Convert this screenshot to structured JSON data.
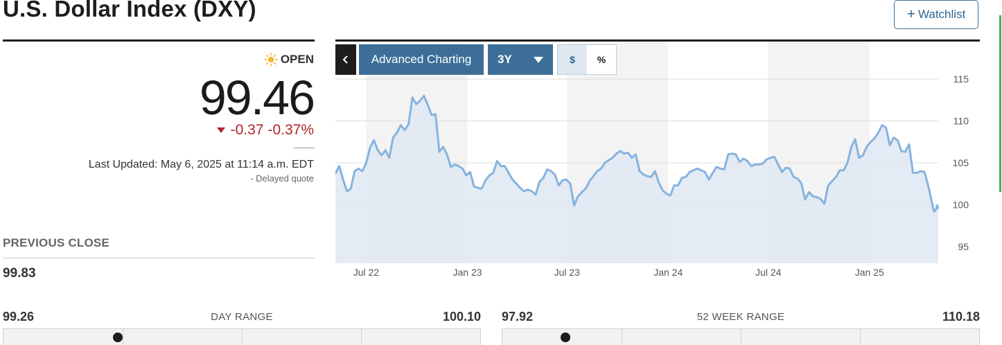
{
  "header": {
    "title": "U.S. Dollar Index (DXY)",
    "watchlist_label": "Watchlist"
  },
  "quote": {
    "status": "OPEN",
    "price": "99.46",
    "change": "-0.37",
    "change_pct": "-0.37%",
    "last_updated": "Last Updated: May 6, 2025 at 11:14 a.m. EDT",
    "delayed": "-  Delayed quote",
    "change_color": "#b0242b"
  },
  "previous_close": {
    "label": "PREVIOUS CLOSE",
    "value": "99.83"
  },
  "day_range": {
    "label": "DAY RANGE",
    "low": "99.26",
    "high": "100.10",
    "position": 0.24
  },
  "week52_range": {
    "label": "52 WEEK RANGE",
    "low": "97.92",
    "high": "110.18",
    "position": 0.134
  },
  "toolbar": {
    "back_icon": "chevron-left-icon",
    "advanced_label": "Advanced Charting",
    "period": "3Y",
    "unit_dollar": "$",
    "unit_percent": "%",
    "accent": "#3c6e97"
  },
  "chart_data": {
    "type": "area",
    "x_ticks": [
      "Jul 22",
      "Jan 23",
      "Jul 23",
      "Jan 24",
      "Jul 24",
      "Jan 25"
    ],
    "y_ticks": [
      95,
      100,
      105,
      110,
      115
    ],
    "ylim": [
      93,
      116
    ],
    "x_range": [
      "2022-05-06",
      "2025-05-06"
    ],
    "line_color": "#86b3df",
    "fill_color": "#dfe8f2",
    "series": [
      {
        "values": [
          [
            "2022-05-06",
            103.7
          ],
          [
            "2022-05-13",
            104.6
          ],
          [
            "2022-05-20",
            103.0
          ],
          [
            "2022-05-27",
            101.6
          ],
          [
            "2022-06-03",
            101.9
          ],
          [
            "2022-06-10",
            104.0
          ],
          [
            "2022-06-17",
            104.3
          ],
          [
            "2022-06-24",
            104.0
          ],
          [
            "2022-07-01",
            105.0
          ],
          [
            "2022-07-08",
            106.8
          ],
          [
            "2022-07-15",
            107.7
          ],
          [
            "2022-07-22",
            106.5
          ],
          [
            "2022-07-29",
            105.9
          ],
          [
            "2022-08-05",
            106.5
          ],
          [
            "2022-08-12",
            105.6
          ],
          [
            "2022-08-19",
            108.0
          ],
          [
            "2022-08-26",
            108.6
          ],
          [
            "2022-09-02",
            109.5
          ],
          [
            "2022-09-09",
            108.9
          ],
          [
            "2022-09-16",
            109.6
          ],
          [
            "2022-09-23",
            112.8
          ],
          [
            "2022-09-30",
            112.0
          ],
          [
            "2022-10-07",
            112.4
          ],
          [
            "2022-10-14",
            113.0
          ],
          [
            "2022-10-21",
            111.9
          ],
          [
            "2022-10-28",
            110.7
          ],
          [
            "2022-11-04",
            110.8
          ],
          [
            "2022-11-11",
            106.3
          ],
          [
            "2022-11-18",
            106.9
          ],
          [
            "2022-11-25",
            106.0
          ],
          [
            "2022-12-02",
            104.5
          ],
          [
            "2022-12-09",
            104.8
          ],
          [
            "2022-12-16",
            104.6
          ],
          [
            "2022-12-23",
            104.3
          ],
          [
            "2022-12-30",
            103.5
          ],
          [
            "2023-01-06",
            103.9
          ],
          [
            "2023-01-13",
            102.2
          ],
          [
            "2023-01-20",
            102.0
          ],
          [
            "2023-01-27",
            101.9
          ],
          [
            "2023-02-03",
            102.9
          ],
          [
            "2023-02-10",
            103.5
          ],
          [
            "2023-02-17",
            103.8
          ],
          [
            "2023-02-24",
            105.2
          ],
          [
            "2023-03-03",
            104.6
          ],
          [
            "2023-03-10",
            104.6
          ],
          [
            "2023-03-17",
            103.8
          ],
          [
            "2023-03-24",
            103.0
          ],
          [
            "2023-03-31",
            102.5
          ],
          [
            "2023-04-07",
            102.0
          ],
          [
            "2023-04-14",
            101.6
          ],
          [
            "2023-04-21",
            101.8
          ],
          [
            "2023-04-28",
            101.6
          ],
          [
            "2023-05-05",
            101.2
          ],
          [
            "2023-05-12",
            102.7
          ],
          [
            "2023-05-19",
            103.2
          ],
          [
            "2023-05-26",
            104.2
          ],
          [
            "2023-06-02",
            104.0
          ],
          [
            "2023-06-09",
            103.6
          ],
          [
            "2023-06-16",
            102.3
          ],
          [
            "2023-06-23",
            102.9
          ],
          [
            "2023-06-30",
            103.0
          ],
          [
            "2023-07-07",
            102.5
          ],
          [
            "2023-07-14",
            99.9
          ],
          [
            "2023-07-21",
            101.0
          ],
          [
            "2023-07-28",
            101.5
          ],
          [
            "2023-08-04",
            101.9
          ],
          [
            "2023-08-11",
            102.8
          ],
          [
            "2023-08-18",
            103.4
          ],
          [
            "2023-08-25",
            104.0
          ],
          [
            "2023-09-01",
            104.3
          ],
          [
            "2023-09-08",
            105.0
          ],
          [
            "2023-09-15",
            105.3
          ],
          [
            "2023-09-22",
            105.6
          ],
          [
            "2023-09-29",
            106.1
          ],
          [
            "2023-10-06",
            106.4
          ],
          [
            "2023-10-13",
            106.1
          ],
          [
            "2023-10-20",
            106.2
          ],
          [
            "2023-10-27",
            105.6
          ],
          [
            "2023-11-03",
            106.0
          ],
          [
            "2023-11-10",
            104.0
          ],
          [
            "2023-11-17",
            103.6
          ],
          [
            "2023-11-24",
            103.4
          ],
          [
            "2023-12-01",
            103.3
          ],
          [
            "2023-12-08",
            104.0
          ],
          [
            "2023-12-15",
            102.6
          ],
          [
            "2023-12-22",
            101.7
          ],
          [
            "2023-12-29",
            101.3
          ],
          [
            "2024-01-05",
            101.1
          ],
          [
            "2024-01-12",
            102.3
          ],
          [
            "2024-01-19",
            102.3
          ],
          [
            "2024-01-26",
            103.2
          ],
          [
            "2024-02-02",
            103.3
          ],
          [
            "2024-02-09",
            103.9
          ],
          [
            "2024-02-16",
            104.1
          ],
          [
            "2024-02-23",
            104.3
          ],
          [
            "2024-03-01",
            104.1
          ],
          [
            "2024-03-08",
            103.9
          ],
          [
            "2024-03-15",
            103.0
          ],
          [
            "2024-03-22",
            103.8
          ],
          [
            "2024-03-29",
            104.5
          ],
          [
            "2024-04-05",
            104.3
          ],
          [
            "2024-04-12",
            104.2
          ],
          [
            "2024-04-19",
            106.0
          ],
          [
            "2024-04-26",
            106.1
          ],
          [
            "2024-05-03",
            106.0
          ],
          [
            "2024-05-10",
            105.1
          ],
          [
            "2024-05-17",
            105.5
          ],
          [
            "2024-05-24",
            105.2
          ],
          [
            "2024-05-31",
            104.6
          ],
          [
            "2024-06-07",
            104.8
          ],
          [
            "2024-06-14",
            104.8
          ],
          [
            "2024-06-21",
            104.9
          ],
          [
            "2024-06-28",
            105.4
          ],
          [
            "2024-07-05",
            105.6
          ],
          [
            "2024-07-12",
            105.7
          ],
          [
            "2024-07-19",
            104.8
          ],
          [
            "2024-07-26",
            103.9
          ],
          [
            "2024-08-02",
            104.4
          ],
          [
            "2024-08-09",
            104.3
          ],
          [
            "2024-08-16",
            103.3
          ],
          [
            "2024-08-23",
            103.1
          ],
          [
            "2024-08-30",
            102.6
          ],
          [
            "2024-09-06",
            100.6
          ],
          [
            "2024-09-13",
            101.5
          ],
          [
            "2024-09-20",
            101.0
          ],
          [
            "2024-09-27",
            100.9
          ],
          [
            "2024-10-04",
            100.7
          ],
          [
            "2024-10-11",
            100.1
          ],
          [
            "2024-10-18",
            102.3
          ],
          [
            "2024-10-25",
            102.8
          ],
          [
            "2024-11-01",
            103.3
          ],
          [
            "2024-11-08",
            104.1
          ],
          [
            "2024-11-15",
            104.1
          ],
          [
            "2024-11-22",
            105.0
          ],
          [
            "2024-11-29",
            106.9
          ],
          [
            "2024-12-06",
            107.8
          ],
          [
            "2024-12-13",
            105.6
          ],
          [
            "2024-12-20",
            105.9
          ],
          [
            "2024-12-27",
            106.9
          ],
          [
            "2025-01-03",
            107.5
          ],
          [
            "2025-01-10",
            107.9
          ],
          [
            "2025-01-17",
            108.6
          ],
          [
            "2025-01-24",
            109.5
          ],
          [
            "2025-01-31",
            109.2
          ],
          [
            "2025-02-07",
            107.1
          ],
          [
            "2025-02-14",
            108.0
          ],
          [
            "2025-02-21",
            107.7
          ],
          [
            "2025-02-28",
            106.4
          ],
          [
            "2025-03-07",
            106.3
          ],
          [
            "2025-03-14",
            107.2
          ],
          [
            "2025-03-21",
            103.8
          ],
          [
            "2025-03-28",
            103.8
          ],
          [
            "2025-04-04",
            104.0
          ],
          [
            "2025-04-11",
            103.9
          ],
          [
            "2025-04-18",
            102.2
          ],
          [
            "2025-04-25",
            100.1
          ],
          [
            "2025-04-28",
            99.2
          ],
          [
            "2025-05-01",
            99.3
          ],
          [
            "2025-05-04",
            99.9
          ],
          [
            "2025-05-06",
            99.5
          ]
        ]
      }
    ]
  }
}
